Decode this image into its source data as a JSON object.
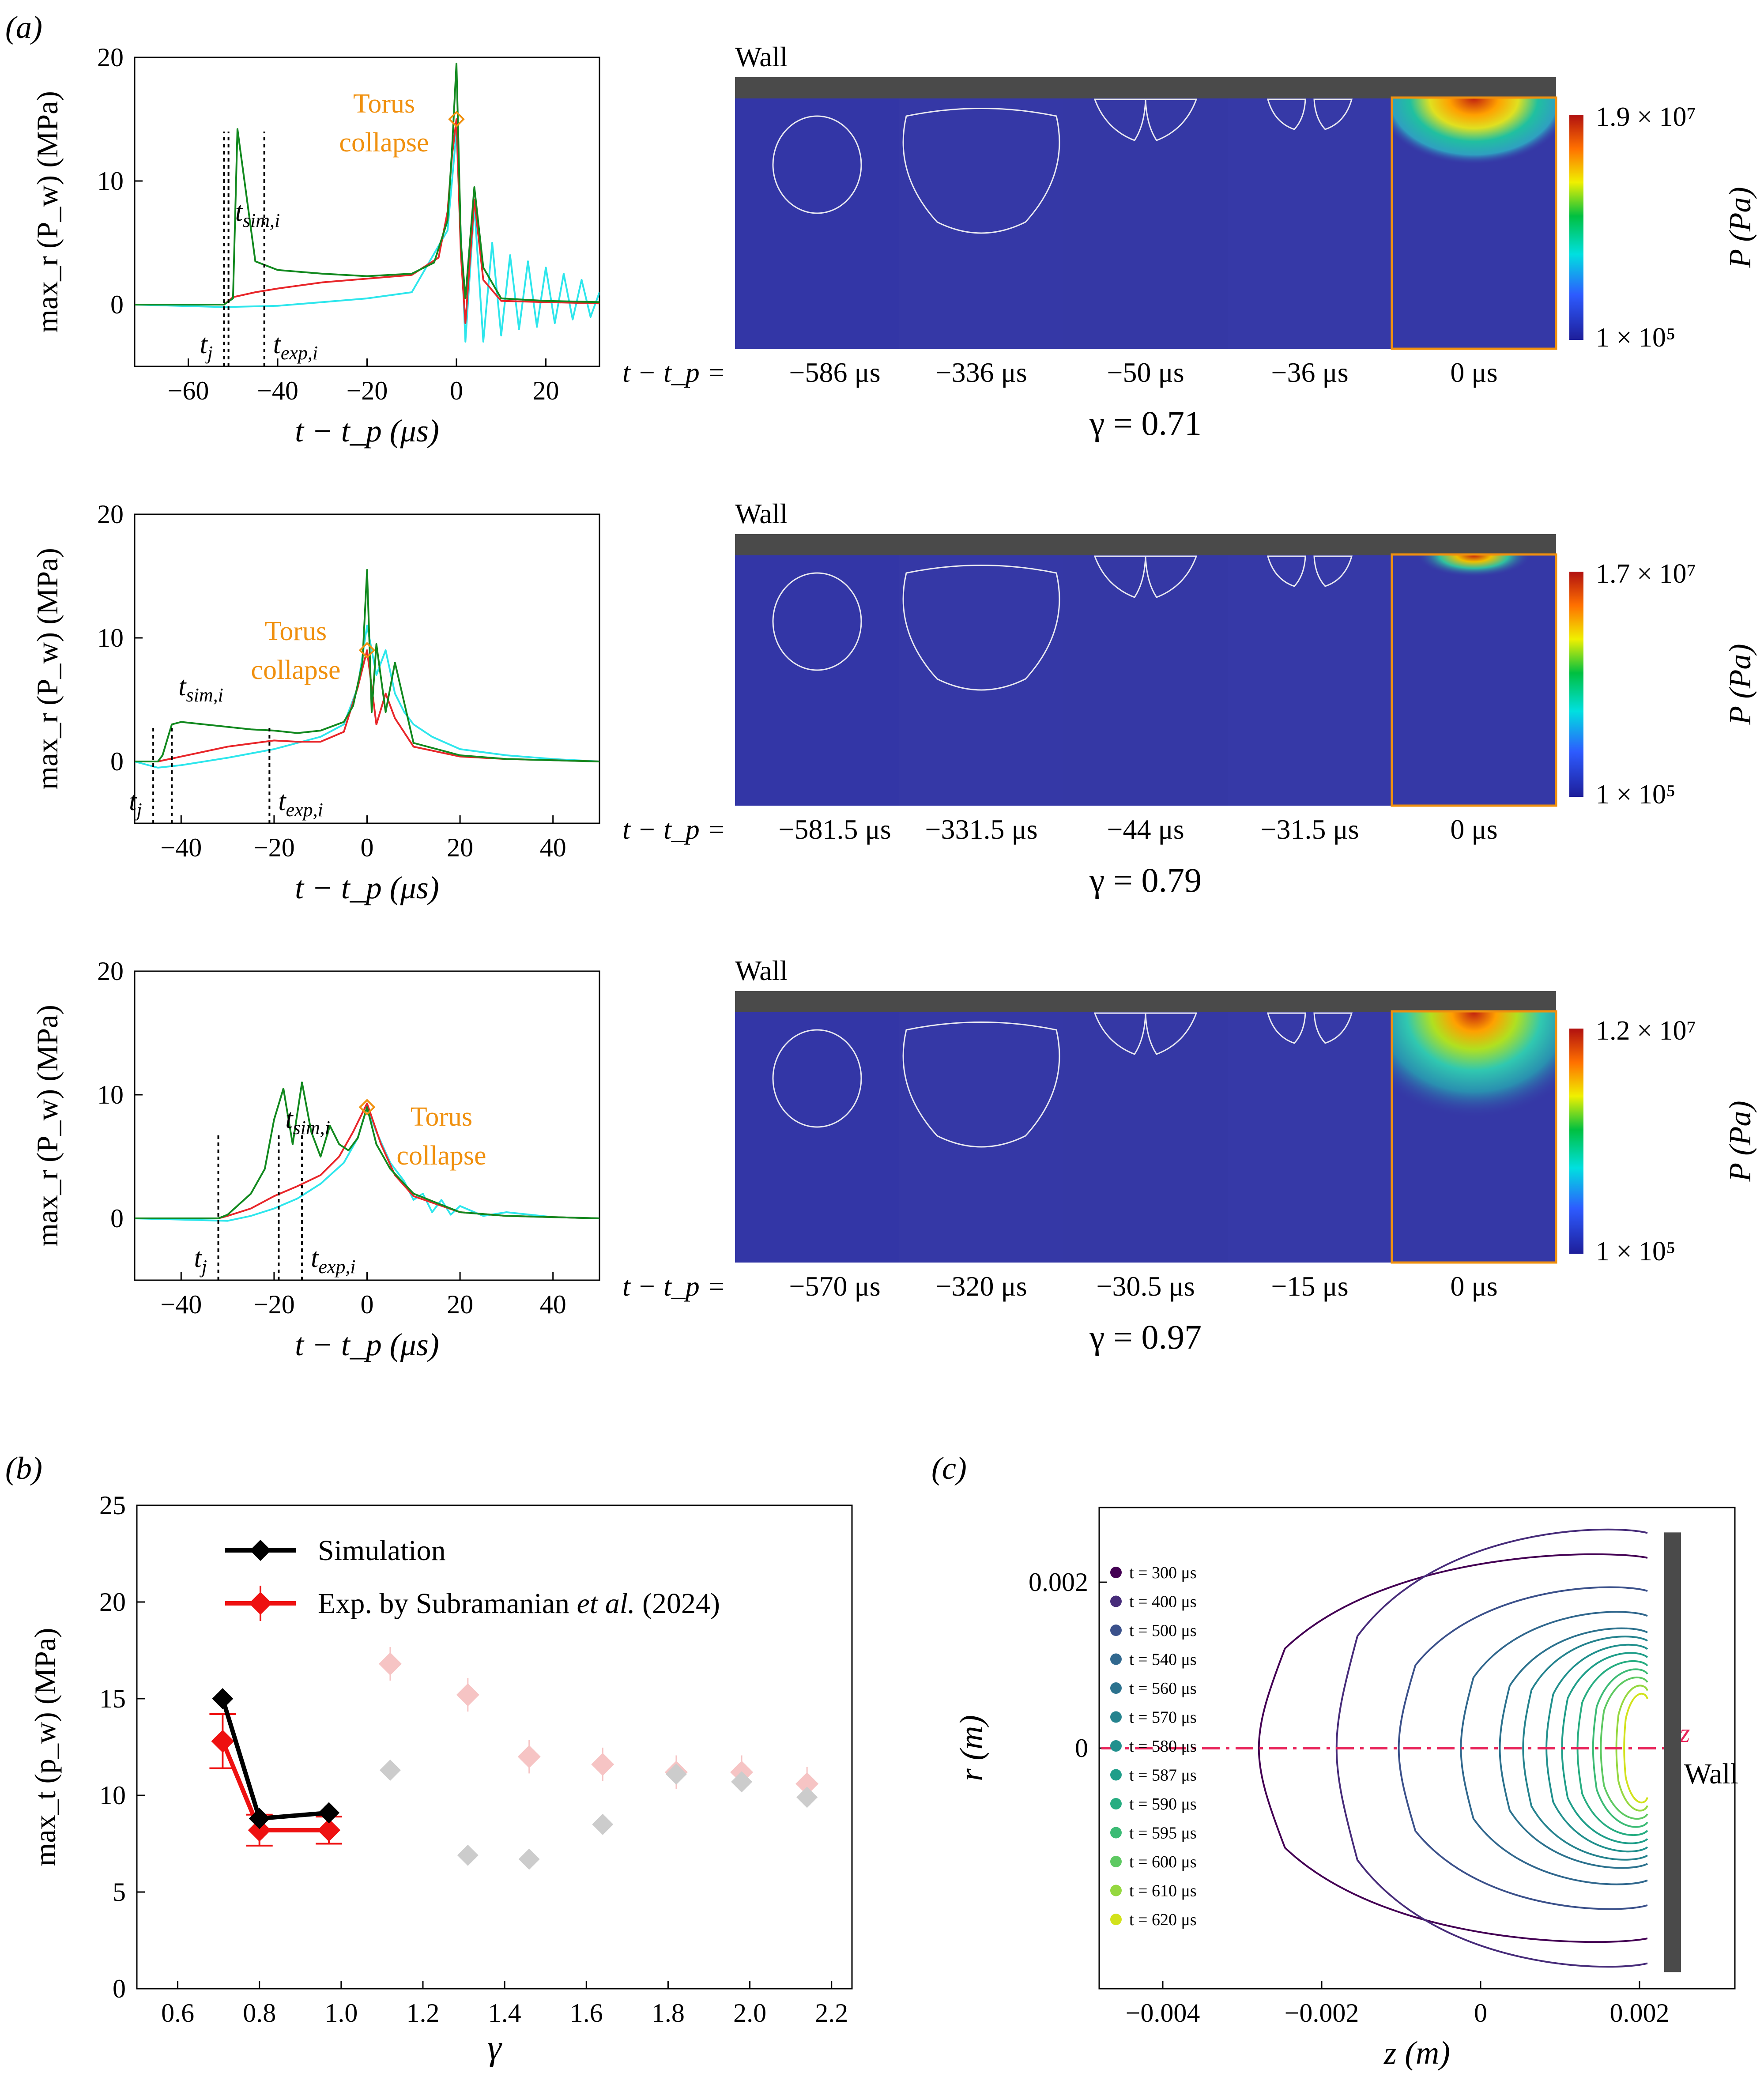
{
  "figure": {
    "panel_labels": [
      "(a)",
      "(b)",
      "(c)"
    ]
  },
  "panel_a": {
    "line_colors": {
      "experiment": "#12891f",
      "simulation": "#e8262a",
      "reference": "#2ee6ec",
      "marker": "#f0900e",
      "annotation": "#f0900e"
    },
    "rows": [
      {
        "ylabel": "max_r (P_w) (MPa)",
        "xlabel": "t − t_p (μs)",
        "x_ticks": [
          "−60",
          "−40",
          "−20",
          "0",
          "20"
        ],
        "y_ticks": [
          "0",
          "10",
          "20"
        ],
        "annotation": [
          "Torus",
          "collapse"
        ],
        "markers": {
          "t_j": "t_j",
          "t_sim": "t_sim,i",
          "t_exp": "t_exp,i"
        },
        "time_prefix": "t − t_p =",
        "times": [
          "−586 μs",
          "−336 μs",
          "−50 μs",
          "−36 μs",
          "0 μs"
        ],
        "gamma": "γ = 0.71",
        "wall_label": "Wall",
        "colorbar_max": "1.9 × 10⁷",
        "colorbar_min": "1 × 10⁵",
        "colorbar_label": "P (Pa)"
      },
      {
        "ylabel": "max_r (P_w) (MPa)",
        "xlabel": "t − t_p (μs)",
        "x_ticks": [
          "−40",
          "−20",
          "0",
          "20",
          "40"
        ],
        "y_ticks": [
          "0",
          "10",
          "20"
        ],
        "annotation": [
          "Torus",
          "collapse"
        ],
        "markers": {
          "t_j": "t_j",
          "t_sim": "t_sim,i",
          "t_exp": "t_exp,i"
        },
        "time_prefix": "t − t_p =",
        "times": [
          "−581.5 μs",
          "−331.5 μs",
          "−44 μs",
          "−31.5 μs",
          "0 μs"
        ],
        "gamma": "γ = 0.79",
        "wall_label": "Wall",
        "colorbar_max": "1.7 × 10⁷",
        "colorbar_min": "1 × 10⁵",
        "colorbar_label": "P (Pa)"
      },
      {
        "ylabel": "max_r (P_w) (MPa)",
        "xlabel": "t − t_p (μs)",
        "x_ticks": [
          "−40",
          "−20",
          "0",
          "20",
          "40"
        ],
        "y_ticks": [
          "0",
          "10",
          "20"
        ],
        "annotation": [
          "Torus",
          "collapse"
        ],
        "markers": {
          "t_j": "t_j",
          "t_sim": "t_sim,i",
          "t_exp": "t_exp,i"
        },
        "time_prefix": "t − t_p =",
        "times": [
          "−570 μs",
          "−320 μs",
          "−30.5 μs",
          "−15 μs",
          "0 μs"
        ],
        "gamma": "γ = 0.97",
        "wall_label": "Wall",
        "colorbar_max": "1.2 × 10⁷",
        "colorbar_min": "1 × 10⁵",
        "colorbar_label": "P (Pa)"
      }
    ]
  },
  "panel_b": {
    "ylabel": "max_t (p_w) (MPa)",
    "xlabel": "γ",
    "x_ticks": [
      "0.6",
      "0.8",
      "1.0",
      "1.2",
      "1.4",
      "1.6",
      "1.8",
      "2.0",
      "2.2"
    ],
    "y_ticks": [
      "0",
      "5",
      "10",
      "15",
      "20",
      "25"
    ],
    "legend": {
      "simulation": "Simulation",
      "experiment_prefix": "Exp. by Subramanian ",
      "experiment_etal": "et al.",
      "experiment_suffix": " (2024)"
    },
    "colors": {
      "simulation": "#000000",
      "experiment": "#ee1111",
      "faded_sim": "#cccccc",
      "faded_exp": "#f6c4c4"
    }
  },
  "panel_c": {
    "ylabel": "r (m)",
    "xlabel": "z (m)",
    "x_ticks": [
      "−0.004",
      "−0.002",
      "0",
      "0.002"
    ],
    "y_ticks": [
      "0",
      "0.002"
    ],
    "axis_label": "z",
    "wall_label": "Wall",
    "legend": [
      "t = 300 μs",
      "t = 400 μs",
      "t = 500 μs",
      "t = 540 μs",
      "t = 560 μs",
      "t = 570 μs",
      "t = 580 μs",
      "t = 587 μs",
      "t = 590 μs",
      "t = 595 μs",
      "t = 600 μs",
      "t = 610 μs",
      "t = 620 μs"
    ],
    "colors": [
      "#440154",
      "#472c7a",
      "#3b518b",
      "#31688e",
      "#2c728e",
      "#25838e",
      "#21908d",
      "#1f9e89",
      "#27ad81",
      "#3cbb75",
      "#5ec962",
      "#95d840",
      "#d2e21b"
    ]
  },
  "chart_data": [
    {
      "type": "line",
      "title": "",
      "xlabel": "t − t_p (μs)",
      "ylabel": "max_r (P_w) (MPa)",
      "xlim": [
        -72,
        32
      ],
      "ylim": [
        -5,
        20
      ],
      "series": [
        {
          "x": [
            -72,
            -52,
            -50,
            -49,
            -45,
            -40,
            -30,
            -20,
            -10,
            -5,
            -2,
            -1,
            0,
            1,
            2,
            4,
            6,
            10,
            20,
            32
          ],
          "y": [
            0,
            0,
            0.5,
            14.2,
            3.5,
            2.8,
            2.5,
            2.3,
            2.5,
            3.4,
            6.8,
            12.5,
            19.5,
            5.0,
            0.5,
            9.5,
            3.0,
            0.5,
            0.3,
            0.2
          ]
        },
        {
          "x": [
            -72,
            -52,
            -50,
            -45,
            -40,
            -30,
            -20,
            -10,
            -4,
            -2,
            -1,
            0,
            1,
            2,
            4,
            6,
            10,
            20,
            32
          ],
          "y": [
            0,
            0,
            0.6,
            1.0,
            1.3,
            1.8,
            2.1,
            2.4,
            3.8,
            7.5,
            12.0,
            15.0,
            4.0,
            -1.5,
            8.5,
            2.0,
            0.3,
            0.2,
            0.1
          ]
        },
        {
          "x": [
            -72,
            -52,
            -40,
            -20,
            -10,
            -2,
            0,
            2,
            4,
            6,
            8,
            10,
            12,
            14,
            16,
            18,
            20,
            22,
            24,
            26,
            28,
            30,
            32
          ],
          "y": [
            0,
            -0.2,
            -0.1,
            0.5,
            1.0,
            6.0,
            14.0,
            -3.0,
            8.0,
            -3.0,
            5.0,
            -2.5,
            4.0,
            -2.0,
            3.5,
            -1.8,
            3.0,
            -1.5,
            2.5,
            -1.2,
            2.0,
            -1.0,
            1.0
          ]
        }
      ],
      "torus_collapse": {
        "x": 0,
        "y": 15.0
      }
    },
    {
      "type": "line",
      "title": "",
      "xlabel": "t − t_p (μs)",
      "ylabel": "max_r (P_w) (MPa)",
      "xlim": [
        -50,
        50
      ],
      "ylim": [
        -5,
        20
      ],
      "series": [
        {
          "x": [
            -50,
            -45,
            -44,
            -42,
            -40,
            -35,
            -30,
            -25,
            -20,
            -15,
            -10,
            -5,
            -3,
            -1,
            0,
            1,
            2,
            4,
            6,
            10,
            20,
            30,
            40,
            50
          ],
          "y": [
            0,
            0,
            0.5,
            3.0,
            3.2,
            3.0,
            2.8,
            2.6,
            2.5,
            2.3,
            2.5,
            3.2,
            4.5,
            8.0,
            15.5,
            4.0,
            9.5,
            4.0,
            8.0,
            1.5,
            0.5,
            0.2,
            0.1,
            0
          ]
        },
        {
          "x": [
            -50,
            -45,
            -40,
            -30,
            -20,
            -15,
            -10,
            -5,
            -2,
            0,
            2,
            4,
            6,
            10,
            20,
            30,
            50
          ],
          "y": [
            0,
            0,
            0.4,
            1.2,
            1.7,
            1.6,
            1.6,
            2.4,
            6.0,
            9.0,
            3.0,
            5.5,
            3.5,
            1.2,
            0.4,
            0.2,
            0
          ]
        },
        {
          "x": [
            -50,
            -45,
            -40,
            -30,
            -20,
            -15,
            -10,
            -5,
            -2,
            0,
            2,
            4,
            6,
            8,
            10,
            14,
            20,
            30,
            40,
            50
          ],
          "y": [
            0,
            -0.5,
            -0.3,
            0.3,
            1.0,
            1.5,
            2.0,
            3.0,
            6.0,
            11.0,
            7.0,
            9.0,
            5.5,
            4.0,
            3.0,
            2.0,
            1.0,
            0.5,
            0.2,
            0
          ]
        }
      ],
      "torus_collapse": {
        "x": 0,
        "y": 9.0
      }
    },
    {
      "type": "line",
      "title": "",
      "xlabel": "t − t_p (μs)",
      "ylabel": "max_r (P_w) (MPa)",
      "xlim": [
        -50,
        50
      ],
      "ylim": [
        -5,
        20
      ],
      "series": [
        {
          "x": [
            -50,
            -32,
            -30,
            -25,
            -22,
            -20,
            -18,
            -16,
            -14,
            -12,
            -10,
            -8,
            -6,
            -4,
            -2,
            0,
            2,
            5,
            10,
            20,
            30,
            50
          ],
          "y": [
            0,
            0,
            0.3,
            2.0,
            4.0,
            8.0,
            10.5,
            6.0,
            11.0,
            7.0,
            5.0,
            7.5,
            6.0,
            5.5,
            6.5,
            9.0,
            6.0,
            4.0,
            2.0,
            0.5,
            0.2,
            0
          ]
        },
        {
          "x": [
            -50,
            -32,
            -30,
            -25,
            -20,
            -15,
            -10,
            -6,
            -3,
            0,
            3,
            6,
            10,
            20,
            30,
            50
          ],
          "y": [
            0,
            0,
            0.2,
            0.8,
            1.8,
            2.6,
            3.5,
            5.0,
            7.0,
            9.3,
            6.0,
            3.5,
            1.8,
            0.5,
            0.2,
            0
          ]
        },
        {
          "x": [
            -50,
            -30,
            -25,
            -20,
            -15,
            -10,
            -5,
            -2,
            0,
            2,
            5,
            8,
            10,
            12,
            14,
            16,
            18,
            20,
            25,
            30,
            40,
            50
          ],
          "y": [
            0,
            -0.2,
            0.2,
            0.8,
            1.6,
            2.8,
            4.5,
            6.5,
            9.0,
            7.0,
            4.5,
            3.0,
            1.5,
            2.0,
            0.5,
            1.5,
            0.3,
            1.0,
            0.2,
            0.5,
            0.1,
            0
          ]
        }
      ],
      "torus_collapse": {
        "x": 0,
        "y": 9.0
      }
    },
    {
      "type": "line",
      "title": "",
      "xlabel": "γ",
      "ylabel": "max_t (p_w) (MPa)",
      "xlim": [
        0.5,
        2.25
      ],
      "ylim": [
        0,
        25
      ],
      "series": [
        {
          "name": "Simulation",
          "x": [
            0.71,
            0.8,
            0.97
          ],
          "y": [
            15.0,
            8.8,
            9.1
          ]
        },
        {
          "name": "Exp. by Subramanian et al. (2024)",
          "x": [
            0.71,
            0.8,
            0.97
          ],
          "y": [
            12.8,
            8.2,
            8.2
          ],
          "err": [
            1.4,
            0.8,
            0.7
          ]
        }
      ],
      "faded_simulation": {
        "x": [
          1.12,
          1.31,
          1.46,
          1.64,
          1.82,
          1.98,
          2.14
        ],
        "y": [
          11.3,
          6.9,
          6.7,
          8.5,
          11.1,
          10.7,
          9.9
        ]
      },
      "faded_experiment": {
        "x": [
          1.12,
          1.31,
          1.46,
          1.64,
          1.82,
          1.98,
          2.14
        ],
        "y": [
          16.8,
          15.2,
          12.0,
          11.6,
          11.2,
          11.2,
          10.6
        ]
      }
    },
    {
      "type": "line",
      "title": "",
      "xlabel": "z (m)",
      "ylabel": "r (m)",
      "xlim": [
        -0.0048,
        0.0032
      ],
      "ylim": [
        -0.0029,
        0.0029
      ],
      "series": [
        {
          "name": "t = 300 μs",
          "zmin": -0.0029,
          "half_height": 0.0024
        },
        {
          "name": "t = 400 μs",
          "zmin": -0.0019,
          "half_height": 0.0027
        },
        {
          "name": "t = 500 μs",
          "zmin": -0.0011,
          "half_height": 0.002
        },
        {
          "name": "t = 540 μs",
          "zmin": -0.0003,
          "half_height": 0.0017
        },
        {
          "name": "t = 560 μs",
          "zmin": 0.0002,
          "half_height": 0.0015
        },
        {
          "name": "t = 570 μs",
          "zmin": 0.0005,
          "half_height": 0.0014
        },
        {
          "name": "t = 580 μs",
          "zmin": 0.0008,
          "half_height": 0.0013
        },
        {
          "name": "t = 587 μs",
          "zmin": 0.001,
          "half_height": 0.0012
        },
        {
          "name": "t = 590 μs",
          "zmin": 0.0012,
          "half_height": 0.0011
        },
        {
          "name": "t = 595 μs",
          "zmin": 0.0014,
          "half_height": 0.001
        },
        {
          "name": "t = 600 μs",
          "zmin": 0.0015,
          "half_height": 0.0009
        },
        {
          "name": "t = 610 μs",
          "zmin": 0.0017,
          "half_height": 0.0008
        },
        {
          "name": "t = 620 μs",
          "zmin": 0.0018,
          "half_height": 0.0007
        }
      ],
      "wall_z": 0.0022
    }
  ]
}
